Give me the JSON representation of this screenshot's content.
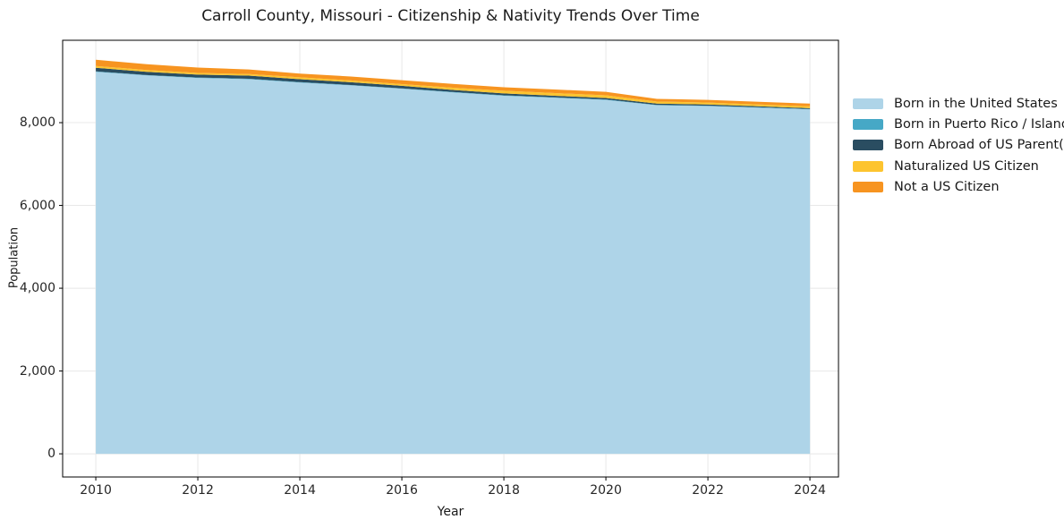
{
  "title": "Carroll County, Missouri - Citizenship & Nativity Trends Over Time",
  "axes": {
    "xlabel": "Year",
    "ylabel": "Population",
    "xticks": [
      {
        "value": 2010,
        "label": "2010"
      },
      {
        "value": 2012,
        "label": "2012"
      },
      {
        "value": 2014,
        "label": "2014"
      },
      {
        "value": 2016,
        "label": "2016"
      },
      {
        "value": 2018,
        "label": "2018"
      },
      {
        "value": 2020,
        "label": "2020"
      },
      {
        "value": 2022,
        "label": "2022"
      },
      {
        "value": 2024,
        "label": "2024"
      }
    ],
    "yticks": [
      {
        "value": 0,
        "label": "0"
      },
      {
        "value": 2000,
        "label": "2,000"
      },
      {
        "value": 4000,
        "label": "4,000"
      },
      {
        "value": 6000,
        "label": "6,000"
      },
      {
        "value": 8000,
        "label": "8,000"
      }
    ]
  },
  "legend": {
    "items": [
      {
        "label": "Born in the United States",
        "color": "#aed4e8"
      },
      {
        "label": "Born in Puerto Rico / Islands",
        "color": "#46a8c6"
      },
      {
        "label": "Born Abroad of US Parent(s)",
        "color": "#2a4d61"
      },
      {
        "label": "Naturalized US Citizen",
        "color": "#fdc42f"
      },
      {
        "label": "Not a US Citizen",
        "color": "#f79420"
      }
    ]
  },
  "chart_data": {
    "type": "area",
    "stacked": true,
    "title": "Carroll County, Missouri - Citizenship & Nativity Trends Over Time",
    "xlabel": "Year",
    "ylabel": "Population",
    "x": [
      2010,
      2011,
      2012,
      2013,
      2014,
      2015,
      2016,
      2017,
      2018,
      2019,
      2020,
      2021,
      2022,
      2023,
      2024
    ],
    "series": [
      {
        "name": "Born in the United States",
        "color": "#aed4e8",
        "values": [
          9230,
          9140,
          9080,
          9050,
          8970,
          8900,
          8820,
          8730,
          8650,
          8600,
          8550,
          8420,
          8400,
          8360,
          8320
        ]
      },
      {
        "name": "Born in Puerto Rico / Islands",
        "color": "#46a8c6",
        "values": [
          10,
          10,
          10,
          10,
          10,
          10,
          10,
          10,
          10,
          10,
          10,
          10,
          10,
          10,
          10
        ]
      },
      {
        "name": "Born Abroad of US Parent(s)",
        "color": "#2a4d61",
        "values": [
          85,
          80,
          70,
          75,
          70,
          65,
          60,
          50,
          45,
          40,
          35,
          30,
          30,
          25,
          20
        ]
      },
      {
        "name": "Naturalized US Citizen",
        "color": "#fdc42f",
        "values": [
          45,
          40,
          40,
          40,
          45,
          45,
          40,
          55,
          65,
          65,
          65,
          50,
          45,
          45,
          45
        ]
      },
      {
        "name": "Not a US Citizen",
        "color": "#f79420",
        "values": [
          150,
          140,
          130,
          110,
          90,
          95,
          95,
          90,
          85,
          85,
          85,
          65,
          65,
          65,
          65
        ]
      }
    ],
    "xlim": [
      2009.35,
      2024.56
    ],
    "ylim": [
      -560,
      9990
    ],
    "grid": true,
    "grid_color": "#e8e8e8",
    "spine_color": "#000000",
    "legend_position": "right"
  }
}
